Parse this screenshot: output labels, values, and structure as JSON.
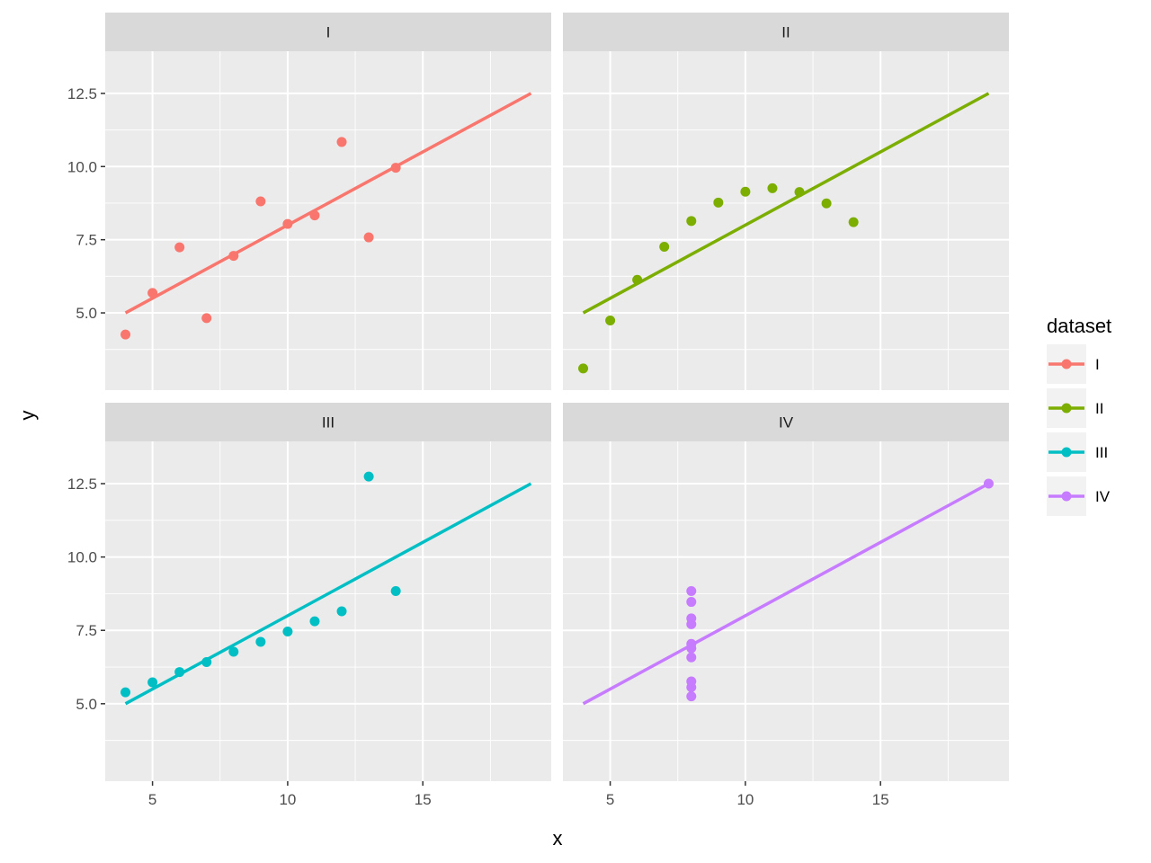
{
  "chart_data": {
    "type": "scatter",
    "facets": [
      "I",
      "II",
      "III",
      "IV"
    ],
    "xlabel": "x",
    "ylabel": "y",
    "xlim": [
      3.25,
      19.75
    ],
    "ylim": [
      2.36,
      13.94
    ],
    "x_ticks": [
      5,
      10,
      15
    ],
    "y_ticks": [
      5.0,
      7.5,
      10.0,
      12.5
    ],
    "grid": true,
    "legend": {
      "title": "dataset",
      "position": "right",
      "entries": [
        "I",
        "II",
        "III",
        "IV"
      ]
    },
    "series": [
      {
        "name": "I",
        "color": "#F8766D",
        "x": [
          10,
          8,
          13,
          9,
          11,
          14,
          6,
          4,
          12,
          7,
          5
        ],
        "y": [
          8.04,
          6.95,
          7.58,
          8.81,
          8.33,
          9.96,
          7.24,
          4.26,
          10.84,
          4.82,
          5.68
        ],
        "fit": {
          "x": [
            4,
            19
          ],
          "y": [
            5.0,
            12.5
          ]
        }
      },
      {
        "name": "II",
        "color": "#7CAE00",
        "x": [
          10,
          8,
          13,
          9,
          11,
          14,
          6,
          4,
          12,
          7,
          5
        ],
        "y": [
          9.14,
          8.14,
          8.74,
          8.77,
          9.26,
          8.1,
          6.13,
          3.1,
          9.13,
          7.26,
          4.74
        ],
        "fit": {
          "x": [
            4,
            19
          ],
          "y": [
            5.0,
            12.5
          ]
        }
      },
      {
        "name": "III",
        "color": "#00BFC4",
        "x": [
          10,
          8,
          13,
          9,
          11,
          14,
          6,
          4,
          12,
          7,
          5
        ],
        "y": [
          7.46,
          6.77,
          12.74,
          7.11,
          7.81,
          8.84,
          6.08,
          5.39,
          8.15,
          6.42,
          5.73
        ],
        "fit": {
          "x": [
            4,
            19
          ],
          "y": [
            5.0,
            12.5
          ]
        }
      },
      {
        "name": "IV",
        "color": "#C77CFF",
        "x": [
          8,
          8,
          8,
          8,
          8,
          8,
          8,
          19,
          8,
          8,
          8
        ],
        "y": [
          6.58,
          5.76,
          7.71,
          8.84,
          8.47,
          7.04,
          5.25,
          12.5,
          5.56,
          7.91,
          6.89
        ],
        "fit": {
          "x": [
            4,
            19
          ],
          "y": [
            5.0,
            12.5
          ]
        }
      }
    ]
  }
}
